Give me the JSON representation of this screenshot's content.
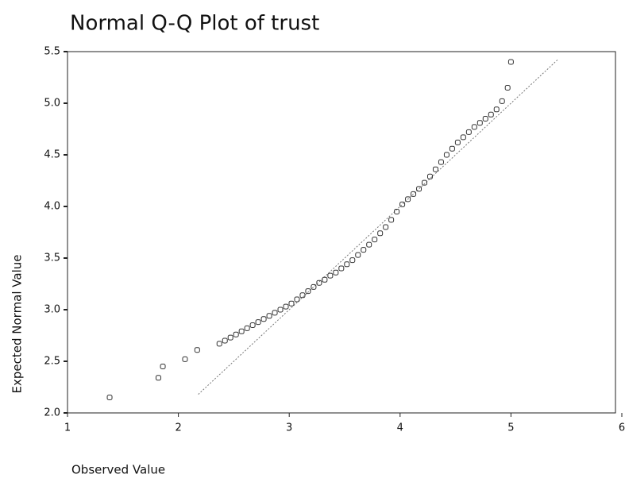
{
  "chart_data": {
    "type": "scatter",
    "title": "Normal Q-Q Plot of trust",
    "xlabel": "Observed Value",
    "ylabel": "Expected Normal Value",
    "xlim": [
      1,
      6
    ],
    "xticks": [
      1,
      2,
      3,
      4,
      5,
      6
    ],
    "ylim": [
      2,
      5.5
    ],
    "yticks": [
      {
        "value": 2,
        "label": "2.0"
      },
      {
        "value": 2.5,
        "label": "2.5"
      },
      {
        "value": 3,
        "label": "3.0"
      },
      {
        "value": 3.5,
        "label": "3.5"
      },
      {
        "value": 4,
        "label": "4.0"
      },
      {
        "value": 4.5,
        "label": "4.5"
      },
      {
        "value": 5,
        "label": "5.0"
      },
      {
        "value": 5.5,
        "label": "5.5"
      }
    ],
    "color": "#333333",
    "x": [
      1.38,
      1.82,
      1.86,
      2.06,
      2.17,
      2.37,
      2.42,
      2.47,
      2.52,
      2.57,
      2.62,
      2.67,
      2.72,
      2.77,
      2.82,
      2.87,
      2.92,
      2.97,
      3.02,
      3.07,
      3.12,
      3.17,
      3.22,
      3.27,
      3.32,
      3.37,
      3.42,
      3.47,
      3.52,
      3.57,
      3.62,
      3.67,
      3.72,
      3.77,
      3.82,
      3.87,
      3.92,
      3.97,
      4.02,
      4.07,
      4.12,
      4.17,
      4.22,
      4.27,
      4.32,
      4.37,
      4.42,
      4.47,
      4.52,
      4.57,
      4.62,
      4.67,
      4.72,
      4.77,
      4.82,
      4.87,
      4.92,
      4.97,
      5.0
    ],
    "y": [
      2.15,
      2.34,
      2.45,
      2.52,
      2.61,
      2.67,
      2.7,
      2.73,
      2.76,
      2.79,
      2.82,
      2.85,
      2.88,
      2.91,
      2.94,
      2.97,
      3.0,
      3.03,
      3.06,
      3.1,
      3.14,
      3.18,
      3.22,
      3.26,
      3.29,
      3.33,
      3.36,
      3.4,
      3.44,
      3.48,
      3.53,
      3.58,
      3.63,
      3.68,
      3.74,
      3.8,
      3.87,
      3.95,
      4.02,
      4.07,
      4.12,
      4.17,
      4.23,
      4.29,
      4.36,
      4.43,
      4.5,
      4.56,
      4.62,
      4.67,
      4.72,
      4.77,
      4.81,
      4.85,
      4.89,
      4.94,
      5.02,
      5.15,
      5.4
    ],
    "reference_line": {
      "x": [
        2.18,
        5.43
      ],
      "y": [
        2.18,
        5.43
      ],
      "color": "#777777"
    }
  }
}
